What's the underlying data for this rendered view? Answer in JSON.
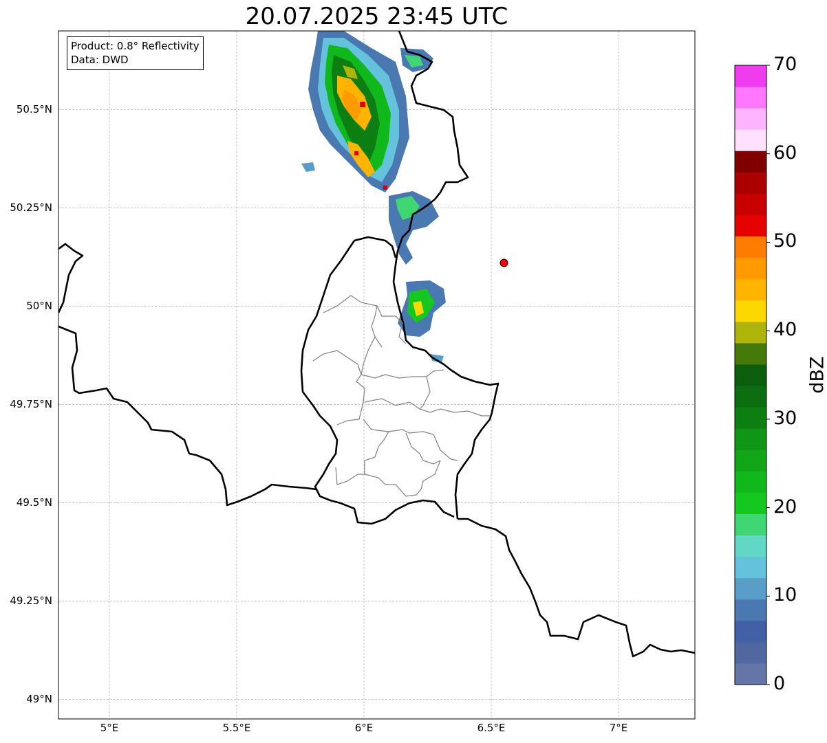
{
  "title": "20.07.2025 23:45 UTC",
  "info": {
    "product": "Product: 0.8° Reflectivity",
    "data": "Data: DWD"
  },
  "map": {
    "lon_range": [
      4.8,
      7.3
    ],
    "lat_range": [
      48.95,
      50.7
    ],
    "lon_ticks": [
      {
        "v": 5.0,
        "label": "5°E"
      },
      {
        "v": 5.5,
        "label": "5.5°E"
      },
      {
        "v": 6.0,
        "label": "6°E"
      },
      {
        "v": 6.5,
        "label": "6.5°E"
      },
      {
        "v": 7.0,
        "label": "7°E"
      }
    ],
    "lat_ticks": [
      {
        "v": 49.0,
        "label": "49°N"
      },
      {
        "v": 49.25,
        "label": "49.25°N"
      },
      {
        "v": 49.5,
        "label": "49.5°N"
      },
      {
        "v": 49.75,
        "label": "49.75°N"
      },
      {
        "v": 50.0,
        "label": "50°N"
      },
      {
        "v": 50.25,
        "label": "50.25°N"
      },
      {
        "v": 50.5,
        "label": "50.5°N"
      }
    ],
    "marker": {
      "lon": 6.55,
      "lat": 50.11,
      "color": "#ff0000"
    },
    "gridlines": true
  },
  "colorbar": {
    "label": "dBZ",
    "min": 0,
    "max": 70,
    "ticks": [
      0,
      10,
      20,
      30,
      40,
      50,
      60,
      70
    ],
    "colors": [
      "#6475a8",
      "#5167a0",
      "#4260a5",
      "#4a79b2",
      "#5a9dc8",
      "#65c2dc",
      "#62d7c6",
      "#3fd673",
      "#14c81f",
      "#11b81c",
      "#10a618",
      "#0f9616",
      "#0c7e12",
      "#0c6e10",
      "#0b5e0d",
      "#457a0b",
      "#afb40a",
      "#ffd700",
      "#ffb400",
      "#ff9a00",
      "#ff7d00",
      "#e60000",
      "#c80000",
      "#aa0000",
      "#800000",
      "#ffe0ff",
      "#ffb4ff",
      "#ff78ff",
      "#ee3cee"
    ]
  }
}
